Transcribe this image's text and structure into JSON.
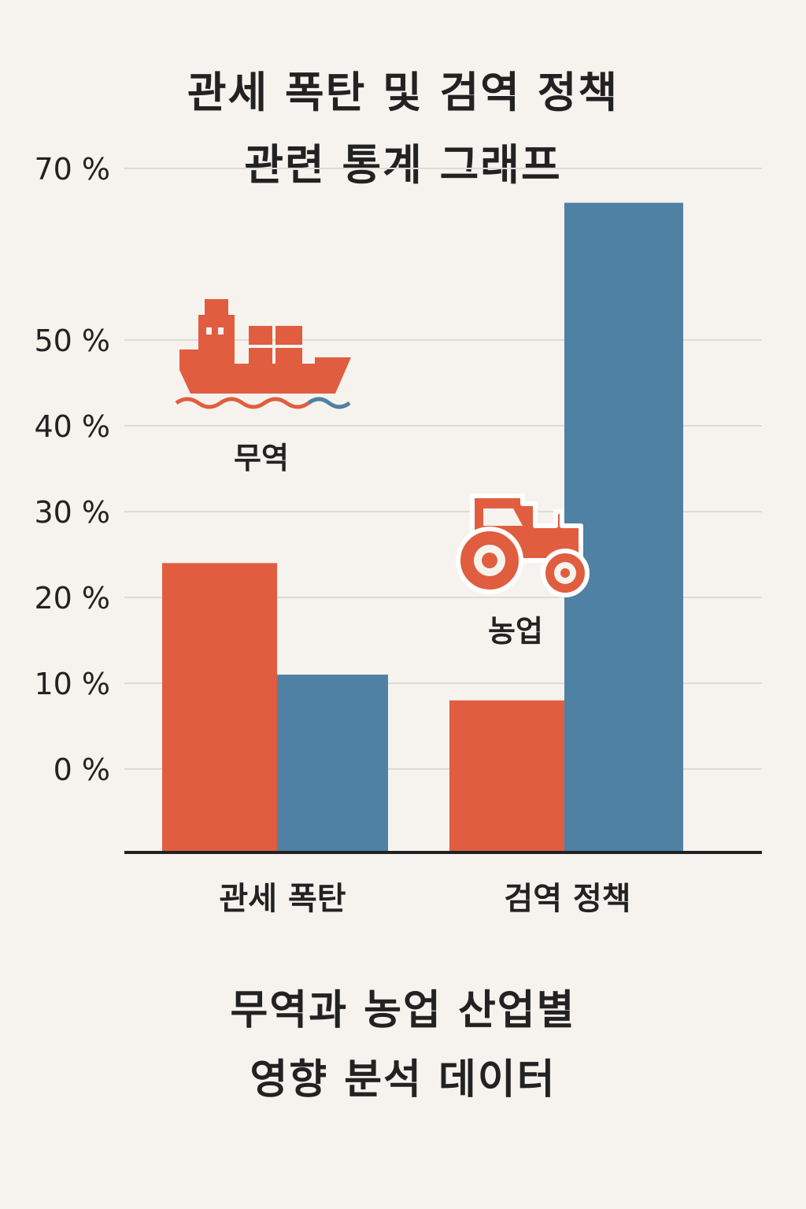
{
  "title_lines": [
    "관세 폭탄 및 검역 정책",
    "관련 통계 그래프"
  ],
  "subtitle_lines": [
    "무역과 농업 산업별",
    "영향 분석 데이터"
  ],
  "colors": {
    "orange": "#e05e3f",
    "blue": "#4e81a3",
    "background": "#f6f3ee",
    "grid": "#dedbd4",
    "axis": "#222222",
    "text": "#222222"
  },
  "icons": {
    "ship": {
      "name": "cargo-ship-icon",
      "label": "무역"
    },
    "tractor": {
      "name": "tractor-icon",
      "label": "농업"
    }
  },
  "chart_data": {
    "type": "bar",
    "categories": [
      "관세 폭탄",
      "검역 정책"
    ],
    "series": [
      {
        "values": [
          24,
          8
        ],
        "color": "#e05e3f"
      },
      {
        "values": [
          11,
          66
        ],
        "color": "#4e81a3"
      }
    ],
    "y_ticks": [
      {
        "value": 0,
        "label": "0 %"
      },
      {
        "value": 10,
        "label": "10 %"
      },
      {
        "value": 20,
        "label": "20 %"
      },
      {
        "value": 30,
        "label": "30 %"
      },
      {
        "value": 40,
        "label": "40 %"
      },
      {
        "value": 50,
        "label": "50 %"
      },
      {
        "value": 70,
        "label": "70 %"
      }
    ],
    "grid": true,
    "legend": "none"
  }
}
